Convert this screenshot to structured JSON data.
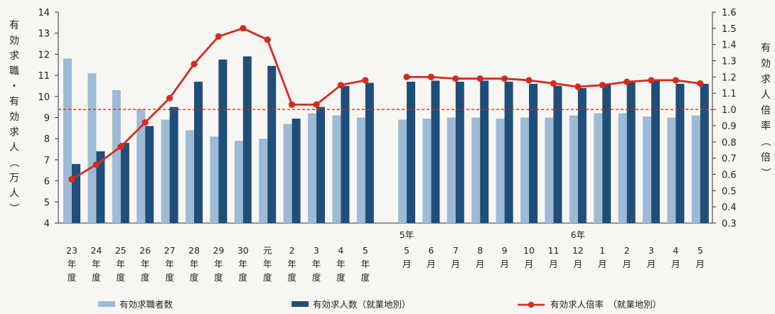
{
  "chart_data": {
    "type": "bar",
    "y_left": {
      "label": "有効求職・有効求人（万人）",
      "ylim": [
        4,
        14
      ],
      "ticks": [
        "4",
        "5",
        "6",
        "7",
        "8",
        "9",
        "10",
        "11",
        "12",
        "13",
        "14"
      ]
    },
    "y_right": {
      "label": "有効求人倍率（倍）",
      "ylim": [
        0.3,
        1.6
      ],
      "ticks": [
        "0.3",
        "0.4",
        "0.5",
        "0.6",
        "0.7",
        "0.8",
        "0.9",
        "1.0",
        "1.1",
        "1.2",
        "1.3",
        "1.4",
        "1.5",
        "1.6"
      ]
    },
    "group_labels": [
      {
        "label": "5年",
        "category_index": 13
      },
      {
        "label": "6年",
        "category_index": 20
      }
    ],
    "categories": [
      [
        "23",
        "年",
        "度"
      ],
      [
        "24",
        "年",
        "度"
      ],
      [
        "25",
        "年",
        "度"
      ],
      [
        "26",
        "年",
        "度"
      ],
      [
        "27",
        "年",
        "度"
      ],
      [
        "28",
        "年",
        "度"
      ],
      [
        "29",
        "年",
        "度"
      ],
      [
        "30",
        "年",
        "度"
      ],
      [
        "元",
        "年",
        "度"
      ],
      [
        "2",
        "年",
        "度"
      ],
      [
        "3",
        "年",
        "度"
      ],
      [
        "4",
        "年",
        "度"
      ],
      [
        "5",
        "年",
        "度"
      ],
      [
        "5",
        "月"
      ],
      [
        "6",
        "月"
      ],
      [
        "7",
        "月"
      ],
      [
        "8",
        "月"
      ],
      [
        "9",
        "月"
      ],
      [
        "10",
        "月"
      ],
      [
        "11",
        "月"
      ],
      [
        "12",
        "月"
      ],
      [
        "1",
        "月"
      ],
      [
        "2",
        "月"
      ],
      [
        "3",
        "月"
      ],
      [
        "4",
        "月"
      ],
      [
        "5",
        "月"
      ]
    ],
    "series": [
      {
        "name": "有効求職者数",
        "kind": "bar",
        "axis": "left",
        "color": "#9dbbd6",
        "values": [
          11.8,
          11.1,
          10.3,
          9.4,
          8.9,
          8.4,
          8.1,
          7.9,
          8.0,
          8.7,
          9.2,
          9.1,
          9.0,
          8.9,
          8.95,
          9.0,
          9.0,
          8.95,
          9.0,
          9.0,
          9.1,
          9.2,
          9.2,
          9.05,
          9.0,
          9.1
        ]
      },
      {
        "name": "有効求人数（就業地別）",
        "kind": "bar",
        "axis": "left",
        "color": "#1f4e79",
        "values": [
          6.8,
          7.4,
          7.8,
          8.6,
          9.5,
          10.7,
          11.75,
          11.9,
          11.45,
          8.95,
          9.5,
          10.5,
          10.65,
          10.7,
          10.75,
          10.7,
          10.75,
          10.7,
          10.6,
          10.5,
          10.4,
          10.55,
          10.7,
          10.75,
          10.6,
          10.6
        ]
      },
      {
        "name": "有効求人倍率（就業地別）",
        "kind": "line",
        "axis": "right",
        "color": "#d62b1e",
        "values": [
          0.57,
          0.66,
          0.77,
          0.92,
          1.07,
          1.28,
          1.45,
          1.5,
          1.43,
          1.03,
          1.03,
          1.15,
          1.18,
          1.2,
          1.2,
          1.19,
          1.19,
          1.19,
          1.18,
          1.16,
          1.14,
          1.15,
          1.17,
          1.18,
          1.18,
          1.16
        ]
      }
    ],
    "reference_line": {
      "axis": "right",
      "value": 1.0,
      "style": "dashed",
      "color": "#d62b1e"
    },
    "legend": [
      {
        "label": "有効求職者数",
        "marker": "bar",
        "color": "#9dbbd6"
      },
      {
        "label": "有効求人数（就業地別）",
        "marker": "bar",
        "color": "#1f4e79"
      },
      {
        "label": "有効求人倍率　（就業地別）",
        "marker": "line",
        "color": "#d62b1e"
      }
    ],
    "legend_position": "bottom",
    "grid": false
  }
}
